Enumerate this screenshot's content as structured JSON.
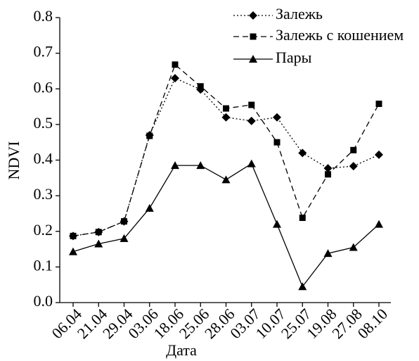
{
  "chart_data": {
    "type": "line",
    "x_label": "Дата",
    "y_label": "NDVI",
    "categories": [
      "06.04",
      "21.04",
      "29.04",
      "03.06",
      "18.06",
      "25.06",
      "28.06",
      "03.07",
      "10.07",
      "25.07",
      "19.08",
      "27.08",
      "08.10"
    ],
    "series": [
      {
        "name": "Залежь",
        "color": "#000000",
        "line_style": "dotted",
        "marker": "diamond",
        "values": [
          0.187,
          0.198,
          0.228,
          0.47,
          0.63,
          0.598,
          0.52,
          0.51,
          0.52,
          0.42,
          0.377,
          0.383,
          0.415
        ]
      },
      {
        "name": "Залежь с кошением",
        "color": "#000000",
        "line_style": "dashed",
        "marker": "square",
        "values": [
          0.187,
          0.198,
          0.228,
          0.468,
          0.668,
          0.607,
          0.545,
          0.555,
          0.45,
          0.238,
          0.36,
          0.428,
          0.558
        ]
      },
      {
        "name": "Пары",
        "color": "#000000",
        "line_style": "solid",
        "marker": "triangle",
        "values": [
          0.143,
          0.165,
          0.18,
          0.265,
          0.385,
          0.385,
          0.345,
          0.39,
          0.22,
          0.045,
          0.138,
          0.155,
          0.22
        ]
      }
    ],
    "ylim": [
      0,
      0.8
    ],
    "yticks": [
      {
        "value": 0,
        "label": "0.0"
      },
      0.1,
      0.2,
      0.3,
      0.4,
      0.5,
      0.6,
      0.7,
      0.8
    ],
    "grid": false,
    "legend": "top-right"
  }
}
